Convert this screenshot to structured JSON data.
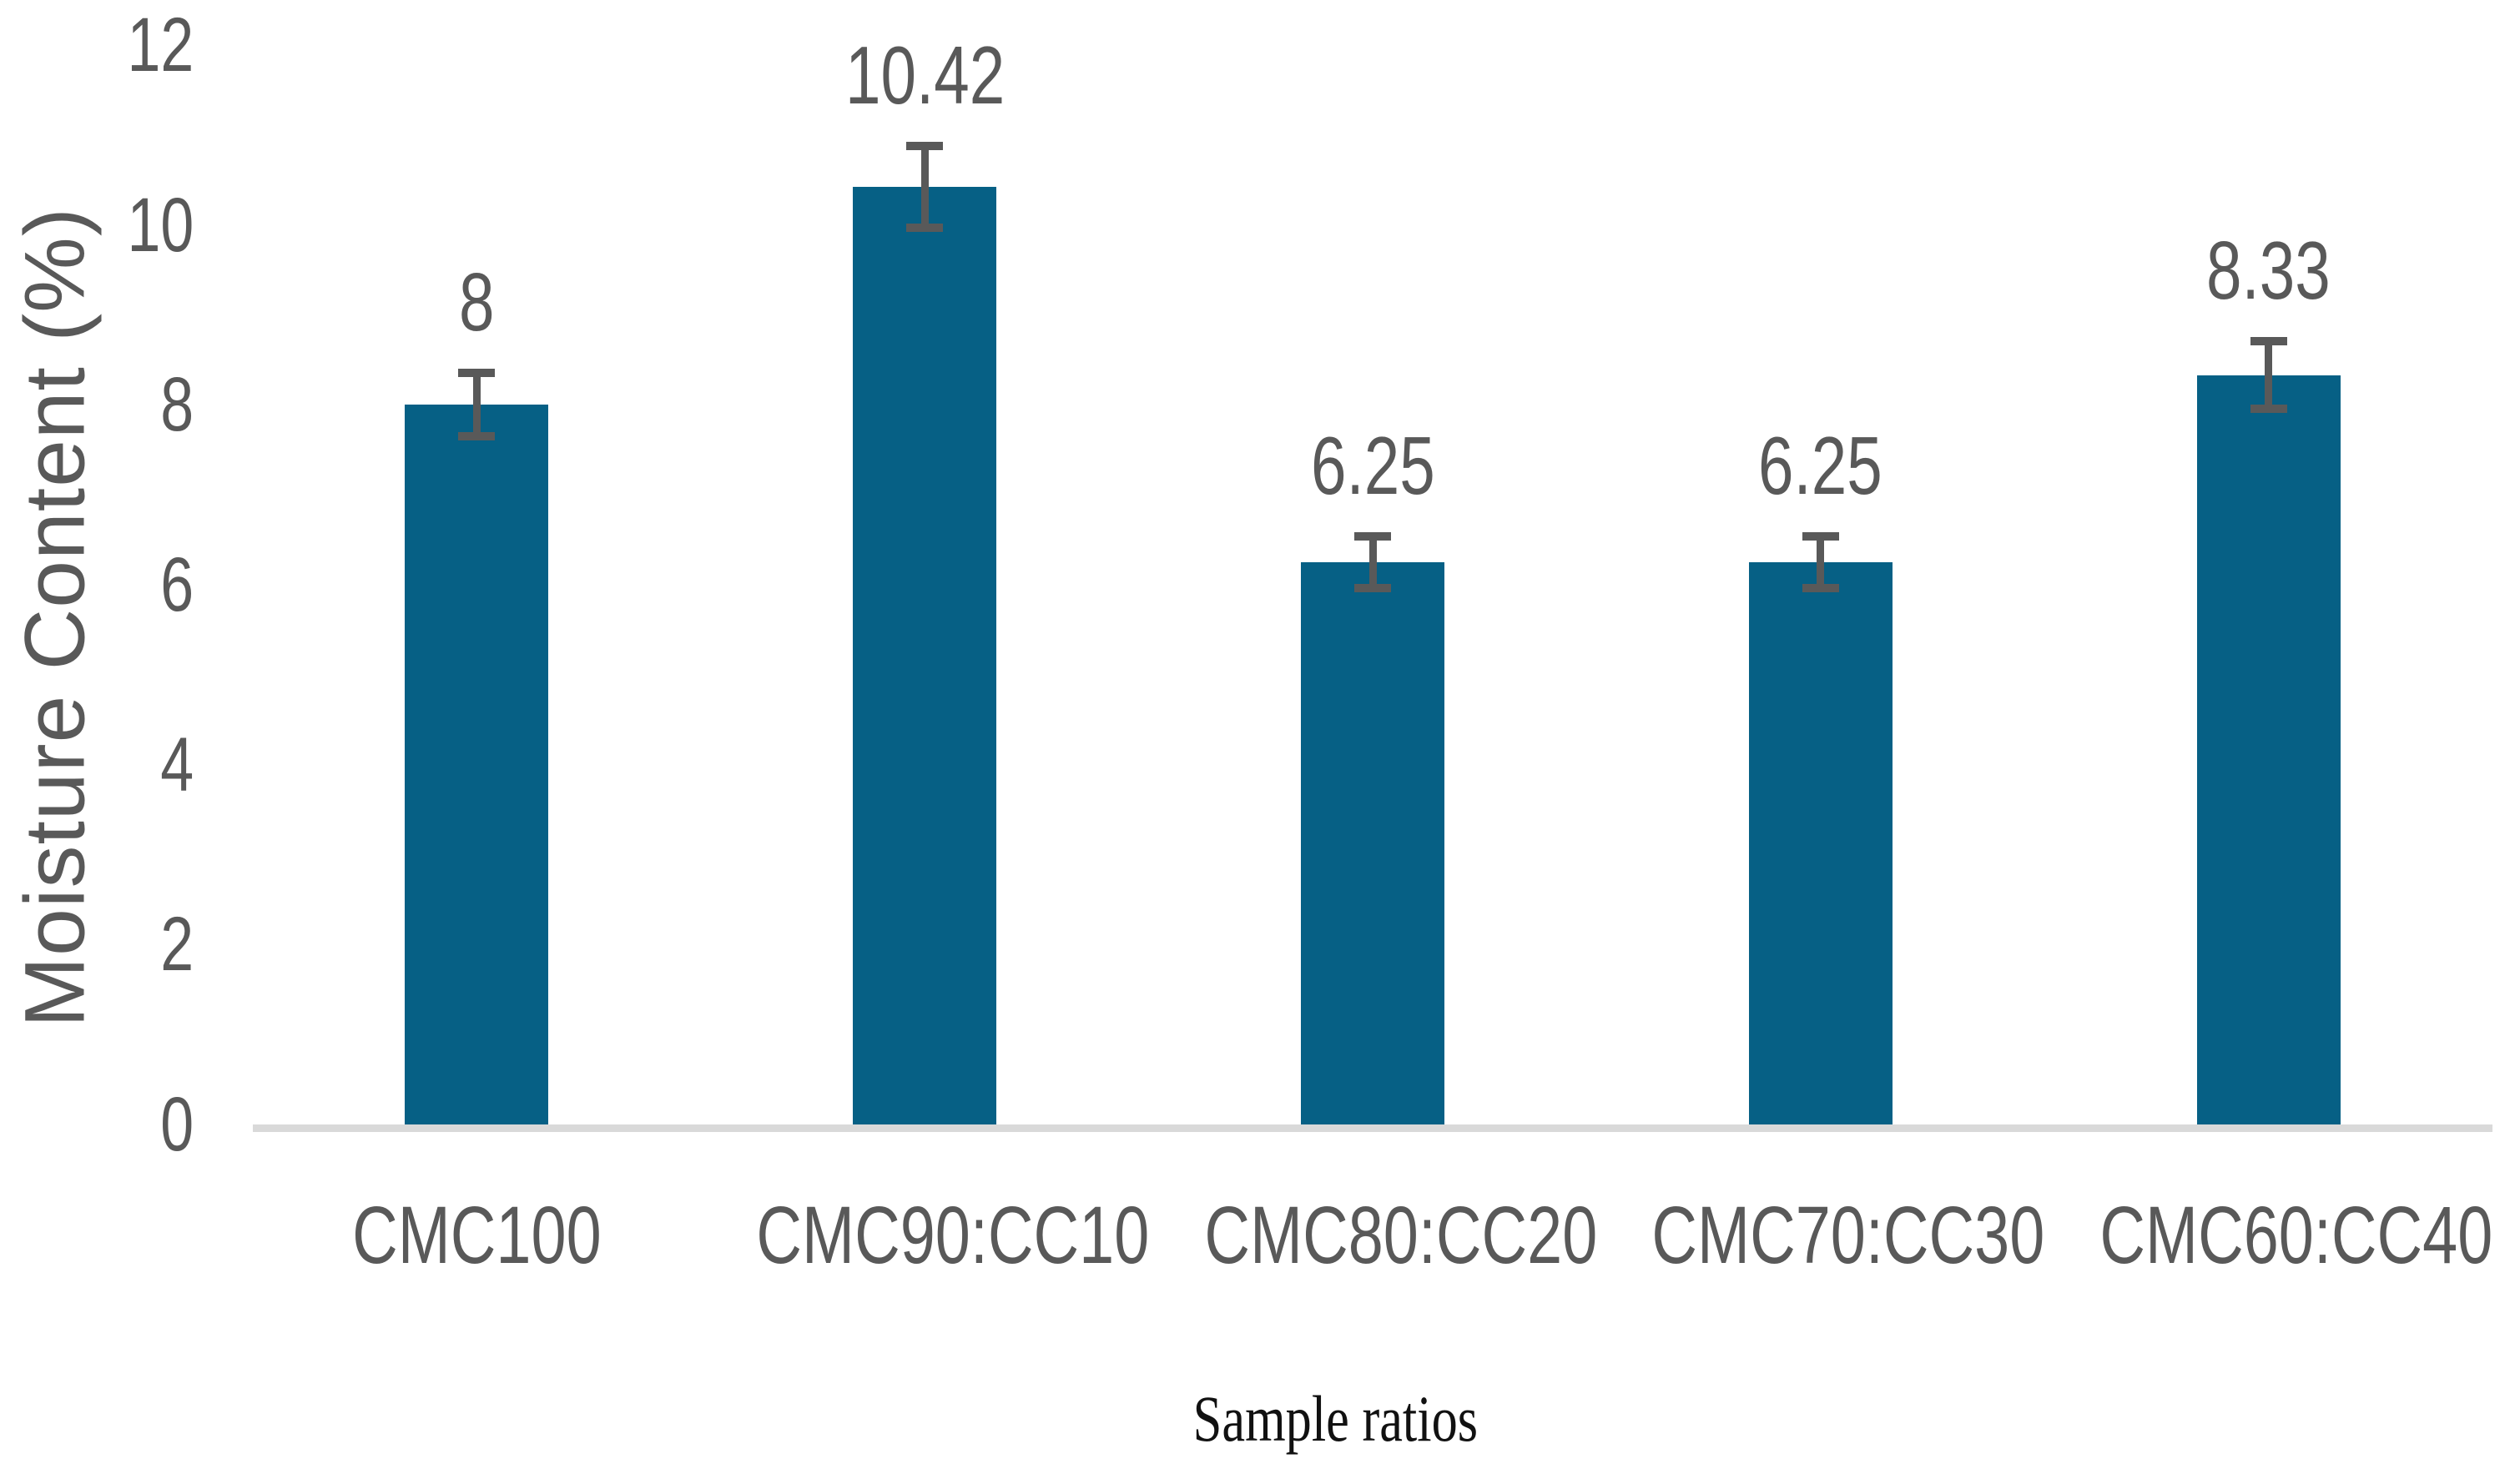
{
  "chart_data": {
    "type": "bar",
    "title": "",
    "categories": [
      "CMC100",
      "CMC90:CC10",
      "CMC80:CC20",
      "CMC70:CC30",
      "CMC60:CC40"
    ],
    "values": [
      8,
      10.42,
      6.25,
      6.25,
      8.33
    ],
    "bar_labels": [
      "8",
      "10.42",
      "6.25",
      "6.25",
      "8.33"
    ],
    "error_bars": [
      0.4,
      0.5,
      0.33,
      0.33,
      0.42
    ],
    "xlabel": "Sample ratios",
    "ylabel": "Moisture Content (%)",
    "ylim": [
      0,
      12
    ],
    "ytick_interval": 2,
    "ytick_labels": [
      "0",
      "2",
      "4",
      "6",
      "8",
      "10",
      "12"
    ],
    "grid": false,
    "legend": "none",
    "colors": {
      "bar": "#066085",
      "error_bar": "#595959",
      "axis_line": "#d9d9d9",
      "tick_label": "#595959",
      "data_label": "#595959",
      "category_label": "#595959",
      "y_axis_title": "#595959",
      "x_axis_title": "#111111",
      "background": "#ffffff"
    }
  }
}
